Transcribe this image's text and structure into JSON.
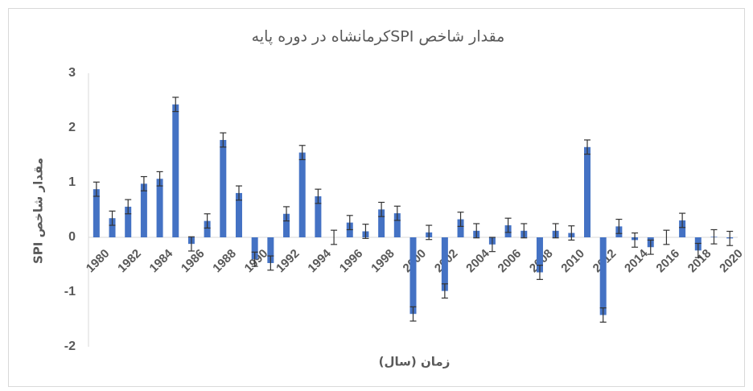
{
  "chart_data": {
    "type": "bar",
    "title": "مقدار شاخص  SPIکرمانشاه در دوره پایه",
    "y_label": "مقدار شاخص SPI",
    "x_label": "زمان (سال)",
    "categories": [
      "1980",
      null,
      "1982",
      null,
      "1984",
      null,
      "1986",
      null,
      "1988",
      null,
      "1990",
      null,
      "1992",
      null,
      "1994",
      null,
      "1996",
      null,
      "1998",
      null,
      "2000",
      null,
      "2002",
      null,
      "2004",
      null,
      "2006",
      null,
      "2008",
      null,
      "2010",
      null,
      "2012",
      null,
      "2014",
      null,
      "2016",
      null,
      "2018",
      null,
      "2020"
    ],
    "values": [
      0.88,
      0.35,
      0.56,
      0.98,
      1.07,
      2.43,
      -0.12,
      0.3,
      1.78,
      0.81,
      -0.4,
      -0.47,
      0.43,
      1.55,
      0.75,
      0.0,
      0.27,
      0.11,
      0.51,
      0.44,
      -1.4,
      0.09,
      -0.98,
      0.33,
      0.12,
      -0.13,
      0.22,
      0.12,
      -0.64,
      0.12,
      0.08,
      1.65,
      -1.42,
      0.2,
      -0.05,
      -0.18,
      0.0,
      0.31,
      -0.24,
      0.01,
      -0.02
    ],
    "error": 0.13,
    "color": "#4472c4",
    "ylim": [
      -2,
      3
    ],
    "yticks": [
      -2,
      -1,
      0,
      1,
      2,
      3
    ],
    "grid": false
  }
}
